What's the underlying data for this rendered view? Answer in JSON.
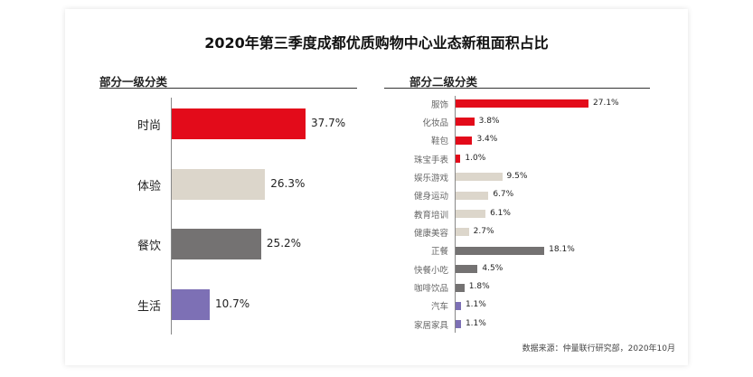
{
  "colors": {
    "fashion": "#e30b1a",
    "experience": "#dcd6cb",
    "dining": "#747272",
    "living": "#7d70b5"
  },
  "chart_data": [
    {
      "type": "bar",
      "orientation": "horizontal",
      "title": "部分一级分类",
      "categories": [
        "时尚",
        "体验",
        "餐饮",
        "生活"
      ],
      "values": [
        37.7,
        26.3,
        25.2,
        10.7
      ],
      "value_labels": [
        "37.7%",
        "26.3%",
        "25.2%",
        "10.7%"
      ],
      "colors": [
        "#e30b1a",
        "#dcd6cb",
        "#747272",
        "#7d70b5"
      ],
      "unit": "%"
    },
    {
      "type": "bar",
      "orientation": "horizontal",
      "title": "部分二级分类",
      "categories": [
        "服饰",
        "化妆品",
        "鞋包",
        "珠宝手表",
        "娱乐游戏",
        "健身运动",
        "教育培训",
        "健康美容",
        "正餐",
        "快餐小吃",
        "咖啡饮品",
        "汽车",
        "家居家具"
      ],
      "values": [
        27.1,
        3.8,
        3.4,
        1.0,
        9.5,
        6.7,
        6.1,
        2.7,
        18.1,
        4.5,
        1.8,
        1.1,
        1.1
      ],
      "value_labels": [
        "27.1%",
        "3.8%",
        "3.4%",
        "1.0%",
        "9.5%",
        "6.7%",
        "6.1%",
        "2.7%",
        "18.1%",
        "4.5%",
        "1.8%",
        "1.1%",
        "1.1%"
      ],
      "colors": [
        "#e30b1a",
        "#e30b1a",
        "#e30b1a",
        "#e30b1a",
        "#dcd6cb",
        "#dcd6cb",
        "#dcd6cb",
        "#dcd6cb",
        "#747272",
        "#747272",
        "#747272",
        "#7d70b5",
        "#7d70b5"
      ],
      "unit": "%"
    }
  ],
  "page": {
    "title": "2020年第三季度成都优质购物中心业态新租面积占比",
    "source": "数据来源：仲量联行研究部，2020年10月"
  }
}
